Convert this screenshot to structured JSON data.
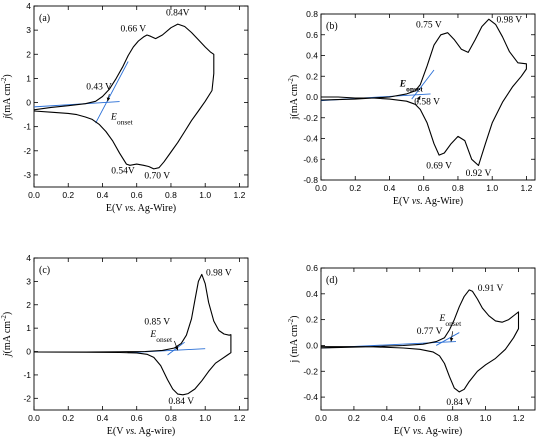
{
  "chart_data": [
    {
      "panel": "(a)",
      "type": "line",
      "xlabel_parts": [
        "E(V ",
        "vs.",
        " Ag-Wire)"
      ],
      "ylabel_parts": [
        {
          "t": "j",
          "i": true
        },
        {
          "t": "(mA cm"
        },
        {
          "t": "-2",
          "s": true
        },
        {
          "t": ")"
        }
      ],
      "xlim": [
        0.0,
        1.25
      ],
      "ylim": [
        -3.5,
        4.0
      ],
      "xticks": [
        "0.0",
        "0.2",
        "0.4",
        "0.6",
        "0.8",
        "1.0",
        "1.2"
      ],
      "yticks": [
        "-3",
        "-2",
        "-1",
        "0",
        "1",
        "2",
        "3",
        "4"
      ],
      "grid": false,
      "legend": "none",
      "series": [
        {
          "color": "#000000",
          "x": [
            0.0,
            0.1,
            0.2,
            0.3,
            0.36,
            0.4,
            0.44,
            0.48,
            0.52,
            0.55,
            0.58,
            0.61,
            0.64,
            0.66,
            0.68,
            0.71,
            0.75,
            0.8,
            0.84,
            0.88,
            0.92,
            0.96,
            1.0,
            1.03,
            1.05,
            1.05,
            1.04,
            1.0,
            0.96,
            0.92,
            0.88,
            0.84,
            0.8,
            0.76,
            0.73,
            0.7,
            0.67,
            0.64,
            0.6,
            0.56,
            0.54,
            0.5,
            0.46,
            0.42,
            0.38,
            0.34,
            0.3,
            0.25,
            0.2,
            0.1,
            0.0
          ],
          "y": [
            -0.3,
            -0.2,
            -0.13,
            -0.05,
            0.05,
            0.25,
            0.55,
            1.0,
            1.5,
            1.95,
            2.3,
            2.55,
            2.72,
            2.8,
            2.75,
            2.65,
            2.8,
            3.1,
            3.25,
            3.15,
            2.9,
            2.6,
            2.3,
            2.1,
            2.0,
            1.2,
            0.5,
            0.05,
            -0.35,
            -0.75,
            -1.2,
            -1.65,
            -2.05,
            -2.45,
            -2.7,
            -2.75,
            -2.65,
            -2.6,
            -2.55,
            -2.6,
            -2.55,
            -2.1,
            -1.6,
            -1.2,
            -0.9,
            -0.7,
            -0.6,
            -0.5,
            -0.45,
            -0.4,
            -0.35
          ]
        }
      ],
      "onset_lines": [
        {
          "x": [
            0.0,
            0.5
          ],
          "y": [
            -0.18,
            0.04
          ]
        },
        {
          "x": [
            0.36,
            0.55
          ],
          "y": [
            -0.85,
            1.7
          ]
        }
      ],
      "annotations": [
        {
          "text": "0.84V",
          "x": 0.84,
          "y": 3.6
        },
        {
          "text": "0.66 V",
          "x": 0.58,
          "y": 2.95
        },
        {
          "text": "0.43 V",
          "x": 0.38,
          "y": 0.55
        },
        {
          "text": "0.54V",
          "x": 0.52,
          "y": -2.95
        },
        {
          "text": "0.70 V",
          "x": 0.72,
          "y": -3.15
        }
      ],
      "onset_label": {
        "main": "E",
        "sub": "onset",
        "x": 0.45,
        "y": -0.7
      },
      "onset_arrow": {
        "x1": 0.44,
        "y1": 0.35,
        "x2": 0.43,
        "y2": 0.05
      }
    },
    {
      "panel": "(b)",
      "type": "line",
      "xlabel_parts": [
        "E(V ",
        "vs.",
        " Ag-Wire)"
      ],
      "ylabel_parts": [
        {
          "t": "j(mA cm"
        },
        {
          "t": "-2",
          "s": true
        },
        {
          "t": ")"
        }
      ],
      "xlim": [
        0.0,
        1.25
      ],
      "ylim": [
        -0.8,
        0.8
      ],
      "xticks": [
        "0.0",
        "0.2",
        "0.4",
        "0.6",
        "0.8",
        "1.0",
        "1.2"
      ],
      "yticks": [
        "-0.8",
        "-0.6",
        "-0.4",
        "-0.2",
        "0.0",
        "0.2",
        "0.4",
        "0.6",
        "0.8"
      ],
      "grid": false,
      "legend": "none",
      "series": [
        {
          "color": "#000000",
          "x": [
            0.0,
            0.2,
            0.4,
            0.5,
            0.55,
            0.58,
            0.62,
            0.66,
            0.7,
            0.74,
            0.78,
            0.82,
            0.86,
            0.9,
            0.94,
            0.98,
            1.02,
            1.06,
            1.1,
            1.15,
            1.2,
            1.2,
            1.17,
            1.12,
            1.06,
            1.0,
            0.96,
            0.92,
            0.88,
            0.84,
            0.8,
            0.76,
            0.72,
            0.69,
            0.66,
            0.62,
            0.58,
            0.55,
            0.5,
            0.4,
            0.3,
            0.2,
            0.1,
            0.0
          ],
          "y": [
            -0.03,
            -0.02,
            0.0,
            0.03,
            0.06,
            0.12,
            0.3,
            0.5,
            0.6,
            0.62,
            0.55,
            0.46,
            0.43,
            0.55,
            0.68,
            0.75,
            0.7,
            0.58,
            0.44,
            0.33,
            0.32,
            0.27,
            0.2,
            0.1,
            -0.05,
            -0.25,
            -0.45,
            -0.66,
            -0.6,
            -0.42,
            -0.38,
            -0.45,
            -0.54,
            -0.56,
            -0.45,
            -0.25,
            -0.12,
            -0.07,
            -0.04,
            -0.02,
            -0.01,
            -0.01,
            0.0,
            0.0
          ]
        }
      ],
      "onset_lines": [
        {
          "x": [
            0.0,
            0.64
          ],
          "y": [
            -0.035,
            0.03
          ]
        },
        {
          "x": [
            0.53,
            0.66
          ],
          "y": [
            -0.02,
            0.26
          ]
        }
      ],
      "annotations": [
        {
          "text": "0.75 V",
          "x": 0.63,
          "y": 0.67
        },
        {
          "text": "0.98 V",
          "x": 1.1,
          "y": 0.72
        },
        {
          "text": "0.58 V",
          "x": 0.62,
          "y": -0.07
        },
        {
          "text": "0.69 V",
          "x": 0.69,
          "y": -0.69
        },
        {
          "text": "0.92 V",
          "x": 0.92,
          "y": -0.76
        }
      ],
      "onset_label": {
        "main": "E",
        "sub": "onset",
        "x": 0.46,
        "y": 0.1,
        "bold": true
      },
      "onset_arrow": {
        "x1": 0.56,
        "y1": -0.05,
        "x2": 0.58,
        "y2": 0.01
      }
    },
    {
      "panel": "(c)",
      "type": "line",
      "xlabel_parts": [
        "E(V ",
        "vs.",
        " Ag-wire)"
      ],
      "ylabel_parts": [
        {
          "t": "j",
          "i": true
        },
        {
          "t": "(mA cm"
        },
        {
          "t": "-2",
          "s": true
        },
        {
          "t": ")"
        }
      ],
      "xlim": [
        0.0,
        1.25
      ],
      "ylim": [
        -2.5,
        4.0
      ],
      "xticks": [
        "0.0",
        "0.2",
        "0.4",
        "0.6",
        "0.8",
        "1.0",
        "1.2"
      ],
      "yticks": [
        "-2",
        "-1",
        "0",
        "1",
        "2",
        "3",
        "4"
      ],
      "grid": false,
      "legend": "none",
      "series": [
        {
          "color": "#000000",
          "x": [
            0.0,
            0.3,
            0.5,
            0.65,
            0.75,
            0.82,
            0.86,
            0.89,
            0.92,
            0.94,
            0.96,
            0.98,
            1.0,
            1.02,
            1.05,
            1.08,
            1.11,
            1.14,
            1.15,
            1.15,
            1.13,
            1.1,
            1.06,
            1.02,
            0.98,
            0.94,
            0.9,
            0.87,
            0.84,
            0.81,
            0.78,
            0.74,
            0.7,
            0.66,
            0.6,
            0.5,
            0.3,
            0.0
          ],
          "y": [
            -0.02,
            -0.02,
            -0.01,
            0.0,
            0.05,
            0.15,
            0.35,
            0.7,
            1.4,
            2.2,
            3.0,
            3.3,
            2.9,
            2.1,
            1.3,
            0.9,
            0.75,
            0.7,
            0.72,
            -0.05,
            -0.15,
            -0.3,
            -0.5,
            -0.85,
            -1.25,
            -1.6,
            -1.8,
            -1.85,
            -1.82,
            -1.6,
            -1.2,
            -0.6,
            -0.25,
            -0.12,
            -0.06,
            -0.04,
            -0.03,
            -0.02
          ]
        }
      ],
      "onset_lines": [
        {
          "x": [
            0.55,
            1.0
          ],
          "y": [
            -0.05,
            0.12
          ]
        },
        {
          "x": [
            0.78,
            0.88
          ],
          "y": [
            -0.15,
            0.4
          ]
        }
      ],
      "annotations": [
        {
          "text": "0.98 V",
          "x": 1.08,
          "y": 3.25
        },
        {
          "text": "0.85 V",
          "x": 0.72,
          "y": 1.15
        },
        {
          "text": "0.84 V",
          "x": 0.86,
          "y": -2.25
        }
      ],
      "onset_label": {
        "main": "E",
        "sub": "onset",
        "x": 0.68,
        "y": 0.62
      },
      "onset_arrow": {
        "x1": 0.82,
        "y1": 0.45,
        "x2": 0.84,
        "y2": 0.05
      }
    },
    {
      "panel": "(d)",
      "type": "line",
      "xlabel_parts": [
        "E(V ",
        "vs.",
        " Ag-wire)"
      ],
      "ylabel_parts": [
        {
          "t": "j (mA cm"
        },
        {
          "t": "-2",
          "s": true
        },
        {
          "t": ")"
        }
      ],
      "xlim": [
        0.0,
        1.3
      ],
      "ylim": [
        -0.5,
        0.6
      ],
      "xticks": [
        "0.0",
        "0.2",
        "0.4",
        "0.6",
        "0.8",
        "1.0",
        "1.2"
      ],
      "yticks": [
        "-0.4",
        "-0.2",
        "0.0",
        "0.2",
        "0.4",
        "0.6"
      ],
      "grid": false,
      "legend": "none",
      "series": [
        {
          "color": "#000000",
          "x": [
            0.0,
            0.3,
            0.5,
            0.62,
            0.7,
            0.75,
            0.78,
            0.81,
            0.84,
            0.87,
            0.9,
            0.92,
            0.95,
            0.98,
            1.02,
            1.06,
            1.1,
            1.14,
            1.18,
            1.2,
            1.2,
            1.17,
            1.12,
            1.06,
            1.0,
            0.95,
            0.9,
            0.87,
            0.84,
            0.81,
            0.78,
            0.75,
            0.72,
            0.68,
            0.6,
            0.5,
            0.3,
            0.0
          ],
          "y": [
            -0.02,
            -0.01,
            0.0,
            0.01,
            0.03,
            0.06,
            0.12,
            0.2,
            0.3,
            0.38,
            0.43,
            0.42,
            0.36,
            0.29,
            0.23,
            0.19,
            0.18,
            0.2,
            0.24,
            0.26,
            0.13,
            0.06,
            -0.03,
            -0.1,
            -0.15,
            -0.2,
            -0.28,
            -0.34,
            -0.36,
            -0.33,
            -0.24,
            -0.14,
            -0.08,
            -0.05,
            -0.03,
            -0.02,
            -0.01,
            -0.01
          ]
        }
      ],
      "onset_lines": [
        {
          "x": [
            0.0,
            0.82
          ],
          "y": [
            -0.02,
            0.03
          ]
        },
        {
          "x": [
            0.7,
            0.84
          ],
          "y": [
            0.0,
            0.1
          ]
        }
      ],
      "annotations": [
        {
          "text": "0.91 V",
          "x": 1.03,
          "y": 0.42
        },
        {
          "text": "0.77 V",
          "x": 0.66,
          "y": 0.09
        },
        {
          "text": "0.84 V",
          "x": 0.84,
          "y": -0.46
        }
      ],
      "onset_label": {
        "main": "E",
        "sub": "onset",
        "x": 0.72,
        "y": 0.19
      },
      "onset_arrow": {
        "x1": 0.8,
        "y1": 0.11,
        "x2": 0.79,
        "y2": 0.03
      }
    }
  ]
}
